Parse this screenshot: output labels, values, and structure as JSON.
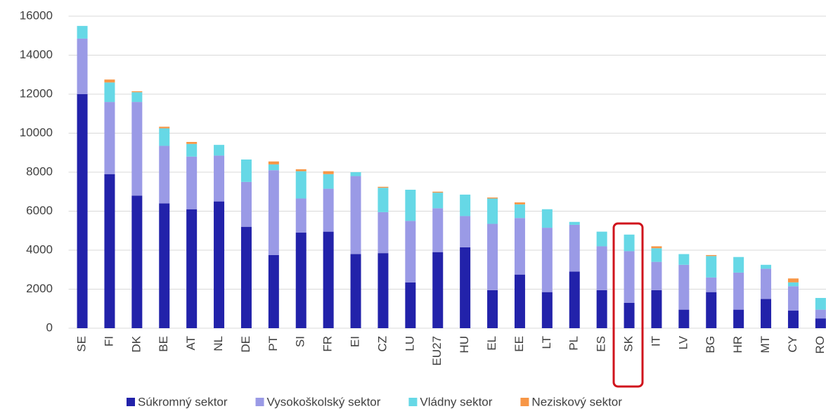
{
  "chart_data": {
    "type": "stacked_bar",
    "categories": [
      "SE",
      "FI",
      "DK",
      "BE",
      "AT",
      "NL",
      "DE",
      "PT",
      "SI",
      "FR",
      "EI",
      "CZ",
      "LU",
      "EU27",
      "HU",
      "EL",
      "EE",
      "LT",
      "PL",
      "ES",
      "SK",
      "IT",
      "LV",
      "BG",
      "HR",
      "MT",
      "CY",
      "RO"
    ],
    "series": [
      {
        "name": "Súkromný sektor",
        "color": "#2222aa",
        "values": [
          12000,
          7900,
          6800,
          6400,
          6100,
          6500,
          5200,
          3750,
          4900,
          4950,
          3800,
          3850,
          2350,
          3900,
          4150,
          1950,
          2750,
          1850,
          2900,
          1950,
          1300,
          1950,
          950,
          1850,
          950,
          1500,
          900,
          500
        ]
      },
      {
        "name": "Vysokoškolský sektor",
        "color": "#9a9ae6",
        "values": [
          2850,
          3700,
          4800,
          2950,
          2700,
          2350,
          2300,
          4350,
          1750,
          2200,
          4000,
          2100,
          3150,
          2250,
          1600,
          3400,
          2900,
          3300,
          2400,
          2250,
          2650,
          1450,
          2300,
          750,
          1900,
          1550,
          1250,
          450
        ]
      },
      {
        "name": "Vládny sektor",
        "color": "#66d8e6",
        "values": [
          650,
          1000,
          500,
          900,
          650,
          550,
          1150,
          300,
          1400,
          750,
          200,
          1250,
          1600,
          800,
          1100,
          1300,
          700,
          950,
          150,
          750,
          850,
          700,
          550,
          1100,
          800,
          200,
          200,
          600
        ]
      },
      {
        "name": "Neziskový sektor",
        "color": "#f79646",
        "values": [
          0,
          150,
          50,
          80,
          100,
          0,
          0,
          150,
          100,
          150,
          0,
          50,
          0,
          50,
          0,
          50,
          100,
          0,
          0,
          0,
          0,
          100,
          0,
          50,
          0,
          0,
          200,
          0
        ]
      }
    ],
    "ylim": [
      0,
      16000
    ],
    "yticks": [
      0,
      2000,
      4000,
      6000,
      8000,
      10000,
      12000,
      14000,
      16000
    ],
    "grid": true,
    "legend": "bottom"
  }
}
